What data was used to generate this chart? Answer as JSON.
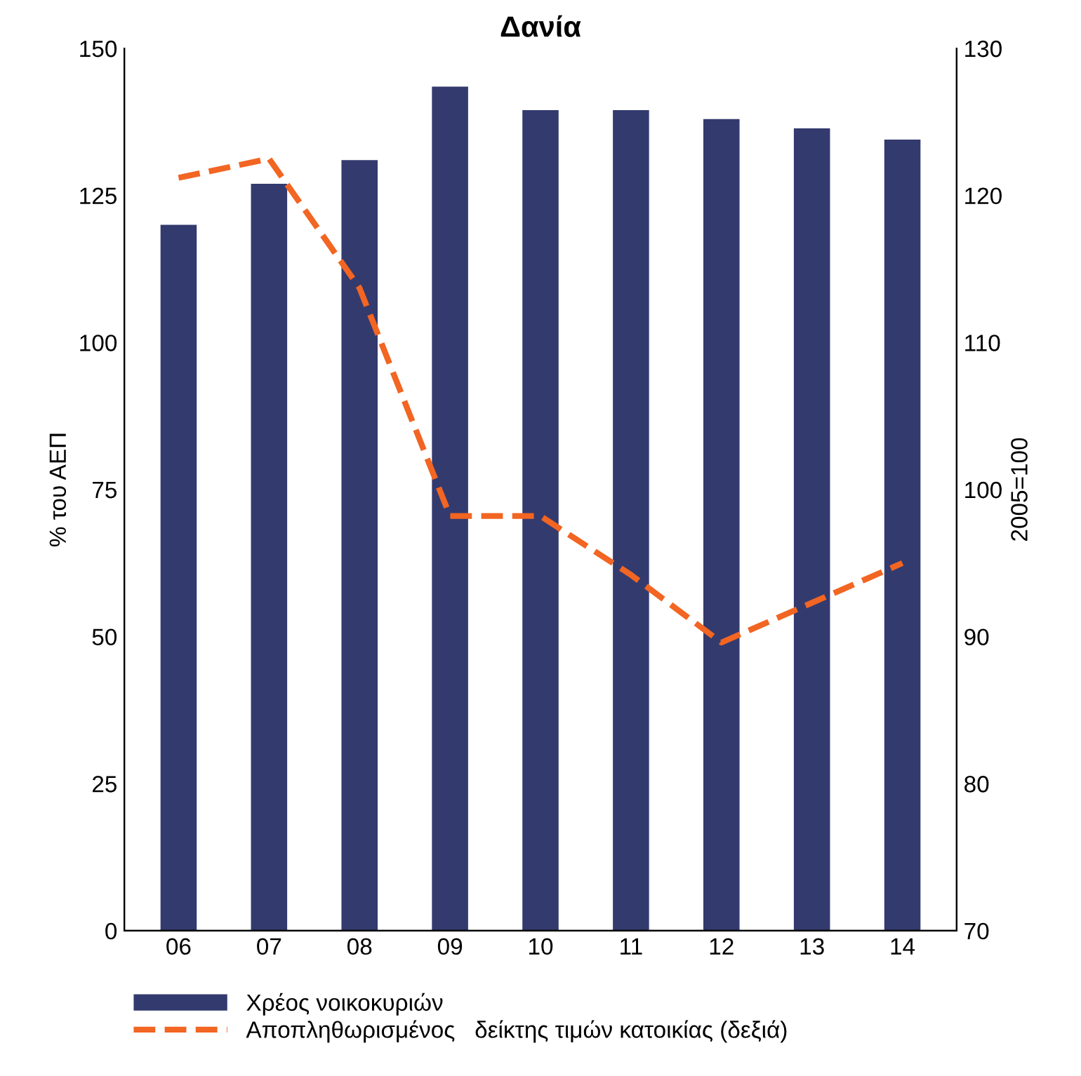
{
  "chart_data": {
    "type": "bar",
    "title": "Δανία",
    "ylabel": "% του ΑΕΠ",
    "y2label": "2005=100",
    "categories": [
      "06",
      "07",
      "08",
      "09",
      "10",
      "11",
      "12",
      "13",
      "14"
    ],
    "series": [
      {
        "name": "Χρέος νοικοκυριών",
        "color": "#333a6e",
        "values": [
          120,
          127,
          131,
          143.5,
          139.5,
          139.5,
          138,
          136.4,
          134.5
        ]
      },
      {
        "name": "Αποπληθωρισμένος   δείκτης τιμών κατοικίας (δεξιά)",
        "type": "line",
        "axis": "y2",
        "color": "#f26522",
        "line_style": "dashed",
        "values": [
          121.2,
          122.5,
          113.7,
          98.2,
          98.2,
          94.2,
          89.6,
          92.3,
          95.0
        ]
      }
    ],
    "ylim": [
      0,
      150
    ],
    "yticks": [
      0,
      25,
      50,
      75,
      100,
      125,
      150
    ],
    "y2lim": [
      70,
      130
    ],
    "y2ticks": [
      70,
      80,
      90,
      100,
      110,
      120,
      130
    ],
    "grid": false,
    "legend": "bottom"
  }
}
